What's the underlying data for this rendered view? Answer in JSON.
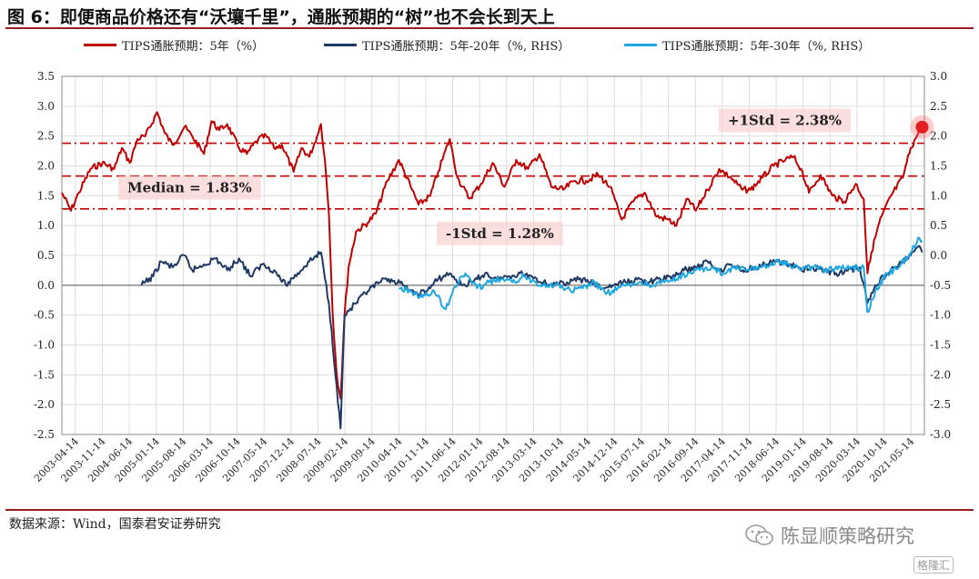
{
  "header": {
    "title": "图 6：即便商品价格还有“沃壤千里”，通胀预期的“树”也不会长到天上"
  },
  "footer": {
    "source": "数据来源：Wind，国泰君安证券研究",
    "watermark": "陈显顺策略研究",
    "watermark_small": "格隆汇"
  },
  "chart_data": {
    "type": "line",
    "title": "图 6：即便商品价格还有“沃壤千里”，通胀预期的“树”也不会长到天上",
    "legend_position": "top",
    "grid": true,
    "x_tick_labels": [
      "2003-04-14",
      "2003-11-14",
      "2004-06-14",
      "2005-01-14",
      "2005-08-14",
      "2006-03-14",
      "2006-10-14",
      "2007-05-14",
      "2007-12-14",
      "2008-07-14",
      "2009-02-14",
      "2009-09-14",
      "2010-04-14",
      "2010-11-14",
      "2011-06-14",
      "2012-01-14",
      "2012-08-14",
      "2013-03-14",
      "2013-10-14",
      "2014-05-14",
      "2014-12-14",
      "2015-07-14",
      "2016-02-14",
      "2016-09-14",
      "2017-04-14",
      "2017-11-14",
      "2018-06-14",
      "2019-01-14",
      "2019-08-14",
      "2020-03-14",
      "2020-10-14",
      "2021-05-14"
    ],
    "y_left": {
      "lim": [
        -2.5,
        3.5
      ],
      "ticks": [
        "-2.5",
        "-2.0",
        "-1.5",
        "-1.0",
        "-0.5",
        "0.0",
        "0.5",
        "1.0",
        "1.5",
        "2.0",
        "2.5",
        "3.0",
        "3.5"
      ]
    },
    "y_right": {
      "lim": [
        -3.0,
        3.0
      ],
      "ticks": [
        "-3.0",
        "-2.5",
        "-2.0",
        "-1.5",
        "-1.0",
        "-0.5",
        "0.0",
        "0.5",
        "1.0",
        "1.5",
        "2.0",
        "2.5",
        "3.0"
      ]
    },
    "reference_lines": [
      {
        "label": "+1Std = 2.38%",
        "value": 2.38,
        "style": "dash-dot"
      },
      {
        "label": "Median = 1.83%",
        "value": 1.83,
        "style": "dash"
      },
      {
        "label": "-1Std = 1.28%",
        "value": 1.28,
        "style": "dash-dot"
      }
    ],
    "series": [
      {
        "name": "TIPS通胀预期：5年（%）",
        "axis": "left",
        "color": "#c00000",
        "points": [
          [
            "2003-01-02",
            1.55
          ],
          [
            "2003-03-14",
            1.25
          ],
          [
            "2003-05-14",
            1.55
          ],
          [
            "2003-08-14",
            1.95
          ],
          [
            "2003-11-14",
            2.05
          ],
          [
            "2004-02-14",
            1.95
          ],
          [
            "2004-04-14",
            2.3
          ],
          [
            "2004-06-14",
            2.05
          ],
          [
            "2004-08-14",
            2.45
          ],
          [
            "2004-10-14",
            2.5
          ],
          [
            "2005-01-14",
            2.9
          ],
          [
            "2005-03-14",
            2.55
          ],
          [
            "2005-05-14",
            2.35
          ],
          [
            "2005-08-14",
            2.65
          ],
          [
            "2005-10-14",
            2.5
          ],
          [
            "2006-01-14",
            2.2
          ],
          [
            "2006-03-14",
            2.75
          ],
          [
            "2006-05-14",
            2.6
          ],
          [
            "2006-07-14",
            2.7
          ],
          [
            "2006-10-14",
            2.3
          ],
          [
            "2006-12-14",
            2.2
          ],
          [
            "2007-03-14",
            2.45
          ],
          [
            "2007-05-14",
            2.5
          ],
          [
            "2007-07-14",
            2.3
          ],
          [
            "2007-09-14",
            2.35
          ],
          [
            "2007-12-14",
            1.9
          ],
          [
            "2008-02-14",
            2.3
          ],
          [
            "2008-04-14",
            2.15
          ],
          [
            "2008-06-14",
            2.5
          ],
          [
            "2008-07-14",
            2.7
          ],
          [
            "2008-08-14",
            2.1
          ],
          [
            "2008-09-14",
            1.2
          ],
          [
            "2008-10-14",
            -0.5
          ],
          [
            "2008-11-14",
            -1.5
          ],
          [
            "2008-12-14",
            -1.9
          ],
          [
            "2009-01-14",
            -0.5
          ],
          [
            "2009-02-14",
            0.3
          ],
          [
            "2009-04-14",
            0.9
          ],
          [
            "2009-07-14",
            1.05
          ],
          [
            "2009-09-14",
            1.2
          ],
          [
            "2009-12-14",
            1.75
          ],
          [
            "2010-03-14",
            2.1
          ],
          [
            "2010-06-14",
            1.65
          ],
          [
            "2010-08-14",
            1.35
          ],
          [
            "2010-11-14",
            1.5
          ],
          [
            "2011-01-14",
            1.9
          ],
          [
            "2011-04-14",
            2.45
          ],
          [
            "2011-06-14",
            1.8
          ],
          [
            "2011-09-14",
            1.45
          ],
          [
            "2011-12-14",
            1.7
          ],
          [
            "2012-03-14",
            2.05
          ],
          [
            "2012-06-14",
            1.65
          ],
          [
            "2012-09-14",
            2.1
          ],
          [
            "2012-12-14",
            1.95
          ],
          [
            "2013-03-14",
            2.2
          ],
          [
            "2013-06-14",
            1.65
          ],
          [
            "2013-09-14",
            1.6
          ],
          [
            "2013-12-14",
            1.75
          ],
          [
            "2014-03-14",
            1.75
          ],
          [
            "2014-06-14",
            1.85
          ],
          [
            "2014-09-14",
            1.65
          ],
          [
            "2014-12-14",
            1.1
          ],
          [
            "2015-03-14",
            1.4
          ],
          [
            "2015-06-14",
            1.55
          ],
          [
            "2015-09-14",
            1.15
          ],
          [
            "2015-12-14",
            1.1
          ],
          [
            "2016-02-14",
            1.0
          ],
          [
            "2016-05-14",
            1.45
          ],
          [
            "2016-07-14",
            1.25
          ],
          [
            "2016-10-14",
            1.6
          ],
          [
            "2017-01-14",
            1.95
          ],
          [
            "2017-04-14",
            1.8
          ],
          [
            "2017-07-14",
            1.6
          ],
          [
            "2017-09-14",
            1.6
          ],
          [
            "2017-12-14",
            1.8
          ],
          [
            "2018-03-14",
            2.0
          ],
          [
            "2018-06-14",
            2.1
          ],
          [
            "2018-08-14",
            2.15
          ],
          [
            "2018-10-14",
            1.95
          ],
          [
            "2018-12-14",
            1.55
          ],
          [
            "2019-03-14",
            1.85
          ],
          [
            "2019-06-14",
            1.5
          ],
          [
            "2019-09-14",
            1.4
          ],
          [
            "2019-12-14",
            1.7
          ],
          [
            "2020-02-14",
            1.45
          ],
          [
            "2020-03-14",
            0.2
          ],
          [
            "2020-04-14",
            0.55
          ],
          [
            "2020-06-14",
            1.05
          ],
          [
            "2020-09-14",
            1.5
          ],
          [
            "2020-12-14",
            1.8
          ],
          [
            "2021-02-14",
            2.3
          ],
          [
            "2021-04-14",
            2.55
          ],
          [
            "2021-05-14",
            2.65
          ]
        ]
      },
      {
        "name": "TIPS通胀预期：5年-20年（%, RHS）",
        "axis": "right",
        "color": "#1f3864",
        "points": [
          [
            "2004-09-14",
            -0.5
          ],
          [
            "2004-12-14",
            -0.35
          ],
          [
            "2005-02-14",
            -0.1
          ],
          [
            "2005-05-14",
            -0.2
          ],
          [
            "2005-08-14",
            0.0
          ],
          [
            "2005-10-14",
            -0.25
          ],
          [
            "2006-01-14",
            -0.15
          ],
          [
            "2006-04-14",
            -0.05
          ],
          [
            "2006-07-14",
            -0.25
          ],
          [
            "2006-10-14",
            -0.05
          ],
          [
            "2007-01-14",
            -0.35
          ],
          [
            "2007-04-14",
            -0.15
          ],
          [
            "2007-07-14",
            -0.25
          ],
          [
            "2007-10-14",
            -0.5
          ],
          [
            "2008-01-14",
            -0.3
          ],
          [
            "2008-04-14",
            -0.1
          ],
          [
            "2008-07-14",
            0.05
          ],
          [
            "2008-09-14",
            -0.8
          ],
          [
            "2008-11-14",
            -2.2
          ],
          [
            "2008-12-14",
            -2.9
          ],
          [
            "2009-01-14",
            -1.0
          ],
          [
            "2009-04-14",
            -0.8
          ],
          [
            "2009-07-14",
            -0.6
          ],
          [
            "2009-10-14",
            -0.45
          ],
          [
            "2010-01-14",
            -0.4
          ],
          [
            "2010-04-14",
            -0.5
          ],
          [
            "2010-07-14",
            -0.65
          ],
          [
            "2010-10-14",
            -0.6
          ],
          [
            "2011-01-14",
            -0.4
          ],
          [
            "2011-04-14",
            -0.3
          ],
          [
            "2011-07-14",
            -0.5
          ],
          [
            "2011-10-14",
            -0.45
          ],
          [
            "2012-01-14",
            -0.3
          ],
          [
            "2012-04-14",
            -0.4
          ],
          [
            "2012-07-14",
            -0.35
          ],
          [
            "2012-10-14",
            -0.3
          ],
          [
            "2013-01-14",
            -0.35
          ],
          [
            "2013-04-14",
            -0.45
          ],
          [
            "2013-07-14",
            -0.5
          ],
          [
            "2013-10-14",
            -0.45
          ],
          [
            "2014-01-14",
            -0.4
          ],
          [
            "2014-04-14",
            -0.45
          ],
          [
            "2014-07-14",
            -0.55
          ],
          [
            "2014-10-14",
            -0.5
          ],
          [
            "2015-01-14",
            -0.45
          ],
          [
            "2015-04-14",
            -0.4
          ],
          [
            "2015-07-14",
            -0.45
          ],
          [
            "2015-10-14",
            -0.4
          ],
          [
            "2016-01-14",
            -0.35
          ],
          [
            "2016-04-14",
            -0.25
          ],
          [
            "2016-07-14",
            -0.2
          ],
          [
            "2016-10-14",
            -0.1
          ],
          [
            "2017-01-14",
            -0.25
          ],
          [
            "2017-04-14",
            -0.15
          ],
          [
            "2017-07-14",
            -0.25
          ],
          [
            "2017-10-14",
            -0.2
          ],
          [
            "2018-01-14",
            -0.15
          ],
          [
            "2018-04-14",
            -0.1
          ],
          [
            "2018-07-14",
            -0.15
          ],
          [
            "2018-10-14",
            -0.25
          ],
          [
            "2019-01-14",
            -0.2
          ],
          [
            "2019-04-14",
            -0.25
          ],
          [
            "2019-07-14",
            -0.3
          ],
          [
            "2019-10-14",
            -0.25
          ],
          [
            "2020-01-14",
            -0.2
          ],
          [
            "2020-03-14",
            -0.8
          ],
          [
            "2020-05-14",
            -0.5
          ],
          [
            "2020-08-14",
            -0.3
          ],
          [
            "2020-11-14",
            -0.15
          ],
          [
            "2021-02-14",
            0.0
          ],
          [
            "2021-04-14",
            0.15
          ],
          [
            "2021-05-14",
            0.05
          ]
        ]
      },
      {
        "name": "TIPS通胀预期：5年-30年（%, RHS）",
        "axis": "right",
        "color": "#1ea7e1",
        "points": [
          [
            "2010-03-14",
            -0.55
          ],
          [
            "2010-06-14",
            -0.6
          ],
          [
            "2010-09-14",
            -0.7
          ],
          [
            "2010-12-14",
            -0.6
          ],
          [
            "2011-03-14",
            -0.9
          ],
          [
            "2011-05-14",
            -0.55
          ],
          [
            "2011-08-14",
            -0.3
          ],
          [
            "2011-11-14",
            -0.55
          ],
          [
            "2012-02-14",
            -0.45
          ],
          [
            "2012-05-14",
            -0.4
          ],
          [
            "2012-08-14",
            -0.45
          ],
          [
            "2012-11-14",
            -0.35
          ],
          [
            "2013-02-14",
            -0.45
          ],
          [
            "2013-05-14",
            -0.5
          ],
          [
            "2013-08-14",
            -0.5
          ],
          [
            "2013-11-14",
            -0.6
          ],
          [
            "2014-02-14",
            -0.55
          ],
          [
            "2014-05-14",
            -0.45
          ],
          [
            "2014-08-14",
            -0.65
          ],
          [
            "2014-11-14",
            -0.55
          ],
          [
            "2015-02-14",
            -0.5
          ],
          [
            "2015-05-14",
            -0.45
          ],
          [
            "2015-08-14",
            -0.5
          ],
          [
            "2015-11-14",
            -0.45
          ],
          [
            "2016-02-14",
            -0.4
          ],
          [
            "2016-05-14",
            -0.3
          ],
          [
            "2016-08-14",
            -0.25
          ],
          [
            "2016-11-14",
            -0.2
          ],
          [
            "2017-02-14",
            -0.3
          ],
          [
            "2017-05-14",
            -0.2
          ],
          [
            "2017-08-14",
            -0.25
          ],
          [
            "2017-11-14",
            -0.2
          ],
          [
            "2018-02-14",
            -0.15
          ],
          [
            "2018-05-14",
            -0.1
          ],
          [
            "2018-08-14",
            -0.2
          ],
          [
            "2018-11-14",
            -0.2
          ],
          [
            "2019-02-14",
            -0.2
          ],
          [
            "2019-05-14",
            -0.25
          ],
          [
            "2019-08-14",
            -0.2
          ],
          [
            "2019-11-14",
            -0.2
          ],
          [
            "2020-02-14",
            -0.2
          ],
          [
            "2020-03-14",
            -0.95
          ],
          [
            "2020-05-14",
            -0.6
          ],
          [
            "2020-08-14",
            -0.3
          ],
          [
            "2020-11-14",
            -0.2
          ],
          [
            "2021-02-14",
            0.05
          ],
          [
            "2021-04-14",
            0.3
          ],
          [
            "2021-05-14",
            0.25
          ]
        ]
      }
    ]
  }
}
